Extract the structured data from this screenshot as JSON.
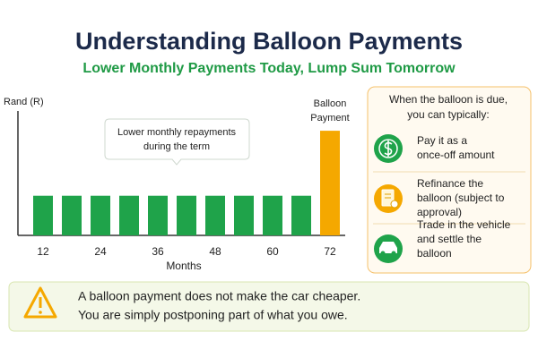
{
  "chart_data": {
    "type": "bar",
    "title": "Understanding Balloon Payments",
    "subtitle": "Lower Monthly Payments Today, Lump Sum Tomorrow",
    "y_label": "Rand (R)",
    "x_label": "Months",
    "categories": [
      "12",
      null,
      "24",
      null,
      "36",
      null,
      "48",
      null,
      "60",
      null,
      "72"
    ],
    "values": [
      1,
      1,
      1,
      1,
      1,
      1,
      1,
      1,
      1,
      1,
      2.64
    ],
    "colors": [
      "#1fa34a",
      "#1fa34a",
      "#1fa34a",
      "#1fa34a",
      "#1fa34a",
      "#1fa34a",
      "#1fa34a",
      "#1fa34a",
      "#1fa34a",
      "#1fa34a",
      "#f5a800"
    ],
    "ylim": [
      0,
      3.5
    ],
    "annotations": [
      {
        "lines": [
          "Balloon",
          "Payment"
        ]
      },
      {
        "lines": [
          "Lower monthly repayments",
          "during the term"
        ]
      }
    ]
  },
  "side_panel": {
    "heading": [
      "When the balloon is due,",
      "you can typically:"
    ],
    "items": [
      {
        "lines": [
          "Pay it as a",
          "once-off amount"
        ]
      },
      {
        "lines": [
          "Refinance the",
          "balloon (subject to",
          "approval)"
        ]
      },
      {
        "lines": [
          "Trade in the vehicle",
          "and settle the",
          "balloon"
        ]
      }
    ]
  },
  "warning": {
    "lines": [
      "A balloon payment does not make the car cheaper.",
      "You are simply postponing part of what you owe."
    ]
  }
}
